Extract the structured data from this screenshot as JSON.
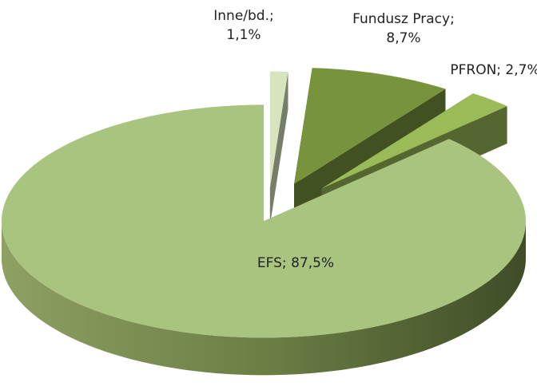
{
  "chart_data": {
    "type": "pie",
    "labels": [
      "Inne/bd.; 1,1%",
      "Fundusz Pracy; 8,7%",
      "PFRON; 2,7%",
      "EFS; 87,5%"
    ],
    "values": [
      1.1,
      8.7,
      2.7,
      87.5
    ],
    "colors": [
      "#d7e4bd",
      "#77933c",
      "#9bbb59",
      "#a9c47f"
    ],
    "explode": true,
    "three_d": true
  }
}
